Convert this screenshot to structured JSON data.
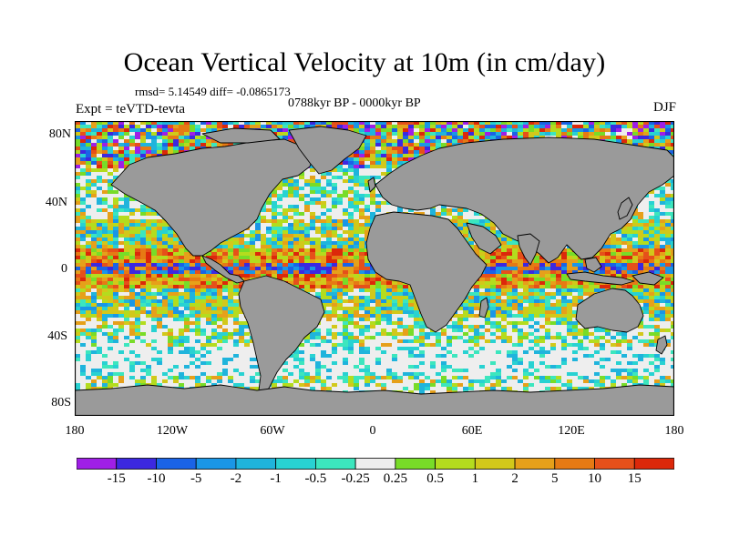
{
  "title": "Ocean Vertical Velocity at 10m (in cm/day)",
  "stats": "rmsd= 5.14549 diff= -0.0865173",
  "period": "0788kyr BP - 0000kyr BP",
  "experiment": "Expt = teVTD-tevta",
  "season": "DJF",
  "lat_labels": [
    "80N",
    "40N",
    "0",
    "40S",
    "80S"
  ],
  "lon_labels": [
    "180",
    "120W",
    "60W",
    "0",
    "60E",
    "120E",
    "180"
  ],
  "colorbar": {
    "labels": [
      "-15",
      "-10",
      "-5",
      "-2",
      "-1",
      "-0.5",
      "-0.25",
      "0.25",
      "0.5",
      "1",
      "2",
      "5",
      "10",
      "15"
    ],
    "colors": [
      "#9f1fe6",
      "#3c28e0",
      "#1a63e6",
      "#1a96e6",
      "#1fb4dc",
      "#28d2d2",
      "#3ce6be",
      "#eeeeee",
      "#78dc28",
      "#b4dc1e",
      "#d2c81a",
      "#e6a01a",
      "#e67a14",
      "#e6501a",
      "#dc280a"
    ]
  },
  "land_color": "#9a9a9a"
}
